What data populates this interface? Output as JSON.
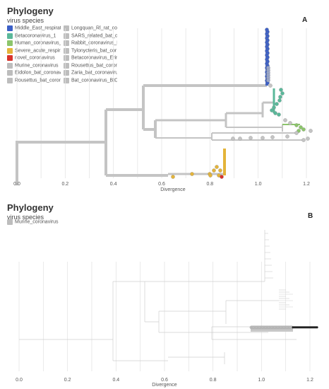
{
  "panels": [
    {
      "id": "A",
      "title": "Phylogeny",
      "subtitle": "virus species",
      "letter": "A",
      "legend": [
        {
          "label": "Middle_East_respirato",
          "color": "#3b5fc7"
        },
        {
          "label": "Betacoronavirus_1",
          "color": "#5ab89a"
        },
        {
          "label": "Human_coronavirus_H",
          "color": "#8cc56b"
        },
        {
          "label": "Severe_acute_respirat",
          "color": "#e4b43a"
        },
        {
          "label": "novel_coronavirus",
          "color": "#d9332b"
        },
        {
          "label": "Murine_coronavirus",
          "color": "#bdbdbd"
        },
        {
          "label": "Eidolon_bat_coronav",
          "color": "#bdbdbd"
        },
        {
          "label": "Rousettus_bat_corona",
          "color": "#bdbdbd"
        },
        {
          "label": "Longquan_Rl_rat_coro",
          "color": "#bdbdbd"
        },
        {
          "label": "SARS_related_bat_cor",
          "color": "#bdbdbd"
        },
        {
          "label": "Rabbit_coronavirus_H",
          "color": "#bdbdbd"
        },
        {
          "label": "Tylonycteris_bat_cor",
          "color": "#bdbdbd"
        },
        {
          "label": "Betacoronavirus_Erin",
          "color": "#bdbdbd"
        },
        {
          "label": "Rousettus_bat_corona",
          "color": "#bdbdbd"
        },
        {
          "label": "Zaria_bat_coronavirus",
          "color": "#bdbdbd"
        },
        {
          "label": "Bat_coronavirus_BtC",
          "color": "#bdbdbd"
        }
      ],
      "axis": {
        "title": "Divergence",
        "ticks": [
          "0.0",
          "0.2",
          "0.4",
          "0.6",
          "0.8",
          "1.0",
          "1.2"
        ]
      }
    },
    {
      "id": "B",
      "title": "Phylogeny",
      "subtitle": "virus species",
      "letter": "B",
      "legend": [
        {
          "label": "Murine_coronavirus",
          "color": "#bdbdbd"
        }
      ],
      "axis": {
        "title": "Divergence",
        "ticks": [
          "0.0",
          "0.2",
          "0.4",
          "0.6",
          "0.8",
          "1.0",
          "1.2"
        ]
      }
    }
  ]
}
